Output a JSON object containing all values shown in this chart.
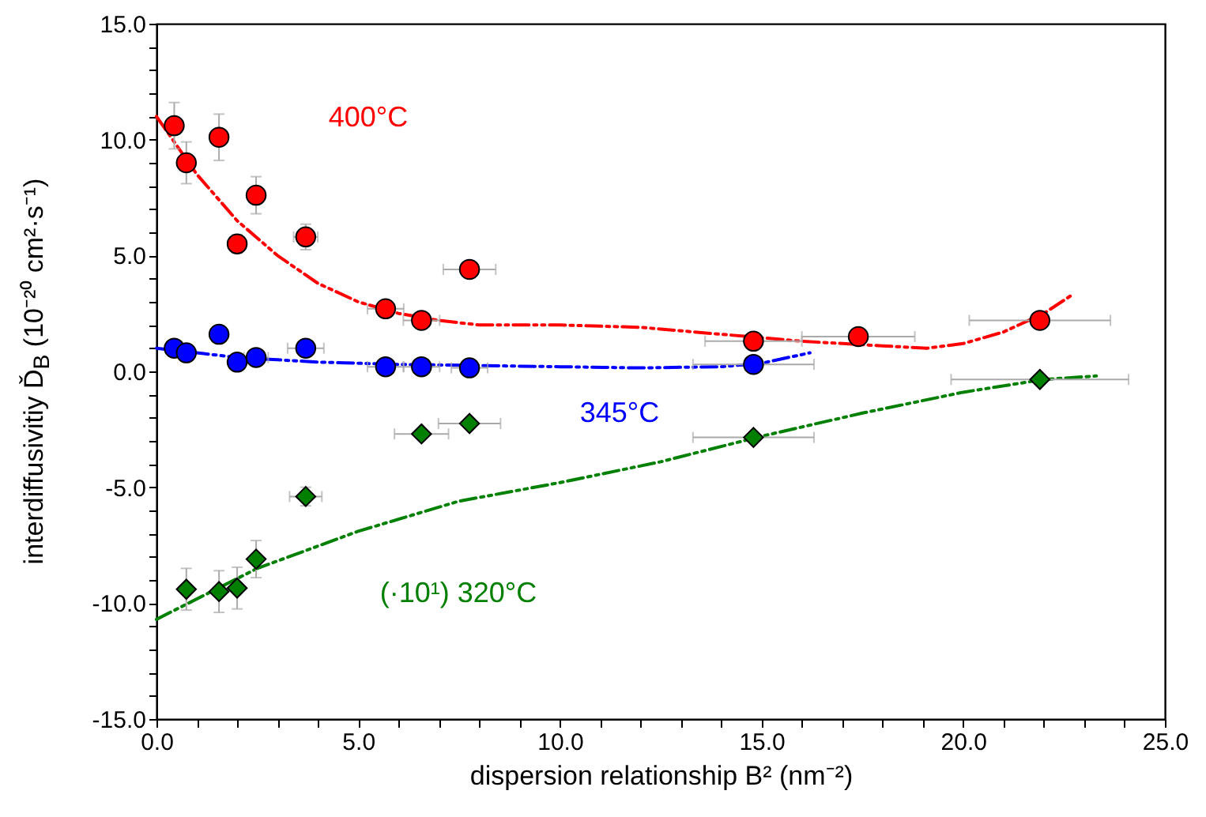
{
  "chart_data": {
    "type": "scatter",
    "xlabel": "dispersion relationship B² (nm⁻²)",
    "ylabel": "interdiffusivitiy Ď$_{B}$ (10⁻²⁰ cm²·s⁻¹)",
    "xlim": [
      0,
      25
    ],
    "ylim": [
      -15,
      15
    ],
    "xticks": [
      {
        "value": 0,
        "label": "0.0"
      },
      {
        "value": 1,
        "label": null
      },
      {
        "value": 2,
        "label": null
      },
      {
        "value": 3,
        "label": null
      },
      {
        "value": 4,
        "label": null
      },
      {
        "value": 5,
        "label": "5.0"
      },
      {
        "value": 6,
        "label": null
      },
      {
        "value": 7,
        "label": null
      },
      {
        "value": 8,
        "label": null
      },
      {
        "value": 9,
        "label": null
      },
      {
        "value": 10,
        "label": "10.0"
      },
      {
        "value": 11,
        "label": null
      },
      {
        "value": 12,
        "label": null
      },
      {
        "value": 13,
        "label": null
      },
      {
        "value": 14,
        "label": null
      },
      {
        "value": 15,
        "label": "15.0"
      },
      {
        "value": 16,
        "label": null
      },
      {
        "value": 17,
        "label": null
      },
      {
        "value": 18,
        "label": null
      },
      {
        "value": 19,
        "label": null
      },
      {
        "value": 20,
        "label": "20.0"
      },
      {
        "value": 21,
        "label": null
      },
      {
        "value": 22,
        "label": null
      },
      {
        "value": 23,
        "label": null
      },
      {
        "value": 24,
        "label": null
      },
      {
        "value": 25,
        "label": "25.0"
      }
    ],
    "yticks": [
      {
        "value": -15,
        "label": "-15.0"
      },
      {
        "value": -14,
        "label": null
      },
      {
        "value": -13,
        "label": null
      },
      {
        "value": -12,
        "label": null
      },
      {
        "value": -11,
        "label": null
      },
      {
        "value": -10,
        "label": "-10.0"
      },
      {
        "value": -9,
        "label": null
      },
      {
        "value": -8,
        "label": null
      },
      {
        "value": -7,
        "label": null
      },
      {
        "value": -6,
        "label": null
      },
      {
        "value": -5,
        "label": "-5.0"
      },
      {
        "value": -4,
        "label": null
      },
      {
        "value": -3,
        "label": null
      },
      {
        "value": -2,
        "label": null
      },
      {
        "value": -1,
        "label": null
      },
      {
        "value": 0,
        "label": "0.0"
      },
      {
        "value": 1,
        "label": null
      },
      {
        "value": 2,
        "label": null
      },
      {
        "value": 3,
        "label": null
      },
      {
        "value": 4,
        "label": null
      },
      {
        "value": 5,
        "label": "5.0"
      },
      {
        "value": 6,
        "label": null
      },
      {
        "value": 7,
        "label": null
      },
      {
        "value": 8,
        "label": null
      },
      {
        "value": 9,
        "label": null
      },
      {
        "value": 10,
        "label": "10.0"
      },
      {
        "value": 11,
        "label": null
      },
      {
        "value": 12,
        "label": null
      },
      {
        "value": 13,
        "label": null
      },
      {
        "value": 14,
        "label": null
      },
      {
        "value": 15,
        "label": "15.0"
      }
    ],
    "series": [
      {
        "name": "400°C",
        "type": "scatter",
        "marker": "circle",
        "color": "#ff0000",
        "x": [
          0.44,
          0.74,
          1.55,
          2.0,
          2.47,
          3.7,
          5.68,
          6.57,
          7.76,
          14.8,
          17.4,
          21.9
        ],
        "values": [
          10.6,
          9.0,
          10.1,
          5.5,
          7.6,
          5.8,
          2.7,
          2.2,
          4.4,
          1.3,
          1.5,
          2.2
        ],
        "errors": [
          1.0,
          0.9,
          1.0,
          0.4,
          0.8,
          0.55,
          0.3,
          0.3,
          0.35,
          null,
          null,
          null
        ],
        "xerrors": [
          null,
          null,
          null,
          null,
          null,
          0.3,
          0.45,
          0.45,
          0.65,
          1.2,
          1.4,
          1.75
        ]
      },
      {
        "name": "345°C",
        "type": "scatter",
        "marker": "circle",
        "color": "#0000ff",
        "x": [
          0.44,
          0.74,
          1.55,
          2.0,
          2.47,
          3.7,
          5.68,
          6.57,
          7.76,
          14.8
        ],
        "values": [
          1.0,
          0.8,
          1.6,
          0.4,
          0.6,
          1.0,
          0.2,
          0.2,
          0.15,
          0.3
        ],
        "xerrors": [
          null,
          null,
          null,
          null,
          0.3,
          0.45,
          0.45,
          0.45,
          0.45,
          1.5
        ]
      },
      {
        "name": "(·10¹) 320°C",
        "type": "scatter",
        "marker": "diamond",
        "color": "#007f00",
        "x": [
          0.74,
          1.55,
          2.0,
          2.47,
          3.7,
          6.57,
          7.76,
          14.8,
          21.9
        ],
        "values": [
          -9.4,
          -9.5,
          -9.35,
          -8.1,
          -5.4,
          -2.7,
          -2.25,
          -2.85,
          -0.35
        ],
        "errors": [
          0.9,
          0.9,
          0.9,
          0.8,
          0.4,
          null,
          null,
          null,
          null
        ],
        "xerrors": [
          null,
          null,
          null,
          null,
          0.4,
          0.67,
          0.77,
          1.5,
          2.2
        ]
      },
      {
        "type": "line",
        "line_style": "dashed",
        "marker": "none",
        "color": "#ff0000",
        "x": [
          0,
          1,
          2,
          3,
          4,
          5,
          6,
          7,
          8,
          10,
          12,
          14,
          16,
          18,
          19.1,
          20,
          21,
          22,
          22.7
        ],
        "values": [
          11.0,
          8.5,
          6.5,
          5.0,
          3.8,
          3.0,
          2.5,
          2.2,
          2.0,
          2.0,
          1.9,
          1.6,
          1.3,
          1.1,
          1.0,
          1.2,
          1.7,
          2.5,
          3.3
        ]
      },
      {
        "type": "line",
        "line_style": "dashed",
        "marker": "none",
        "color": "#0000ff",
        "x": [
          0,
          1,
          2,
          3,
          4,
          6,
          8,
          10,
          12,
          14,
          15,
          16.2
        ],
        "values": [
          1.0,
          0.8,
          0.6,
          0.5,
          0.4,
          0.3,
          0.25,
          0.2,
          0.15,
          0.2,
          0.35,
          0.8
        ]
      },
      {
        "type": "line",
        "line_style": "dashed",
        "marker": "none",
        "color": "#008000",
        "x": [
          0,
          2.5,
          5,
          7.5,
          10,
          12.5,
          15,
          17.5,
          20,
          22,
          23.3
        ],
        "values": [
          -10.7,
          -8.5,
          -6.9,
          -5.6,
          -4.8,
          -3.9,
          -2.8,
          -1.8,
          -0.9,
          -0.35,
          -0.2
        ]
      }
    ]
  }
}
